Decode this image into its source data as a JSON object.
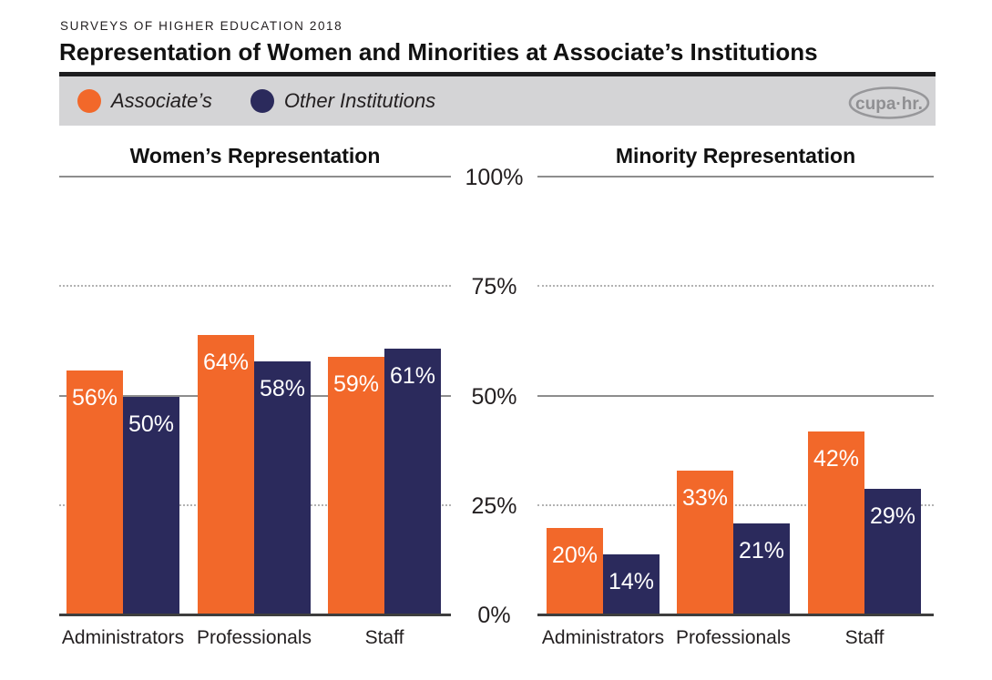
{
  "header": {
    "eyebrow": "SURVEYS OF HIGHER EDUCATION 2018",
    "title": "Representation of Women and Minorities at Associate’s Institutions"
  },
  "legend": {
    "position": "top",
    "items": [
      {
        "label": "Associate’s",
        "color": "#F2682A"
      },
      {
        "label": "Other Institutions",
        "color": "#2B2A5C"
      }
    ],
    "logo_text": "cupa·hr."
  },
  "colors": {
    "associates_orange": "#F2682A",
    "other_navy": "#2B2A5C",
    "legend_band": "#D4D4D6",
    "header_rule": "#1D1D1F",
    "grid_solid": "#8D8D8D",
    "grid_dotted": "#B2B2B2",
    "axis_zero": "#3E3E3E",
    "logo_gray": "#97979A"
  },
  "y_axis": {
    "shared": true,
    "ticks": [
      {
        "value": 100,
        "label": "100%"
      },
      {
        "value": 75,
        "label": "75%"
      },
      {
        "value": 50,
        "label": "50%"
      },
      {
        "value": 25,
        "label": "25%"
      },
      {
        "value": 0,
        "label": "0%"
      }
    ]
  },
  "chart_data": [
    {
      "type": "bar",
      "title": "Women’s Representation",
      "categories": [
        "Administrators",
        "Professionals",
        "Staff"
      ],
      "series": [
        {
          "name": "Associate’s",
          "values": [
            56,
            64,
            59
          ]
        },
        {
          "name": "Other Institutions",
          "values": [
            50,
            58,
            61
          ]
        }
      ],
      "value_suffix": "%",
      "ylabel": "",
      "ylim": [
        0,
        100
      ],
      "yticks": [
        0,
        25,
        50,
        75,
        100
      ],
      "gridlines": {
        "solid": [
          50,
          100
        ],
        "dotted": [
          25,
          75
        ],
        "axis": [
          0
        ]
      }
    },
    {
      "type": "bar",
      "title": "Minority Representation",
      "categories": [
        "Administrators",
        "Professionals",
        "Staff"
      ],
      "series": [
        {
          "name": "Associate’s",
          "values": [
            20,
            33,
            42
          ]
        },
        {
          "name": "Other Institutions",
          "values": [
            14,
            21,
            29
          ]
        }
      ],
      "value_suffix": "%",
      "ylabel": "",
      "ylim": [
        0,
        100
      ],
      "yticks": [
        0,
        25,
        50,
        75,
        100
      ],
      "gridlines": {
        "solid": [
          50,
          100
        ],
        "dotted": [
          25,
          75
        ],
        "axis": [
          0
        ]
      }
    }
  ]
}
